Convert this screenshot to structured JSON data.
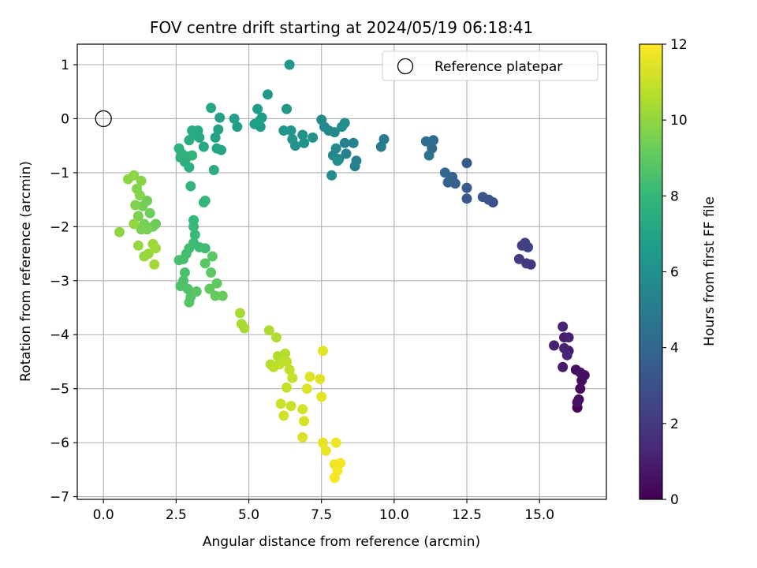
{
  "chart_data": {
    "type": "scatter",
    "title": "FOV centre drift starting at 2024/05/19 06:18:41",
    "xlabel": "Angular distance from reference (arcmin)",
    "ylabel": "Rotation from reference (arcmin)",
    "xlim": [
      -0.9,
      17.3
    ],
    "ylim": [
      -7.05,
      1.38
    ],
    "x_ticks": [
      0.0,
      2.5,
      5.0,
      7.5,
      10.0,
      12.5,
      15.0
    ],
    "x_tick_labels": [
      "0.0",
      "2.5",
      "5.0",
      "7.5",
      "10.0",
      "12.5",
      "15.0"
    ],
    "y_ticks": [
      1,
      0,
      -1,
      -2,
      -3,
      -4,
      -5,
      -6,
      -7
    ],
    "y_tick_labels": [
      "1",
      "0",
      "−1",
      "−2",
      "−3",
      "−4",
      "−5",
      "−6",
      "−7"
    ],
    "grid": true,
    "legend": {
      "position": "top-right",
      "entries": [
        "Reference platepar"
      ]
    },
    "reference_point": {
      "x": 0.0,
      "y": 0.0,
      "label": "Reference platepar"
    },
    "colorbar": {
      "label": "Hours from first FF file",
      "range": [
        0,
        12
      ],
      "ticks": [
        0,
        2,
        4,
        6,
        8,
        10,
        12
      ],
      "tick_labels": [
        "0",
        "2",
        "4",
        "6",
        "8",
        "10",
        "12"
      ],
      "colormap": "viridis"
    },
    "colormap_stops": [
      "#440154",
      "#482878",
      "#3e4989",
      "#31688e",
      "#26828e",
      "#1f9e89",
      "#35b779",
      "#6ece58",
      "#b5de2b",
      "#fde725"
    ],
    "points": [
      {
        "x": 16.3,
        "y": -5.35,
        "h": 0.1
      },
      {
        "x": 16.35,
        "y": -5.2,
        "h": 0.2
      },
      {
        "x": 16.4,
        "y": -5.0,
        "h": 0.3
      },
      {
        "x": 16.45,
        "y": -4.85,
        "h": 0.35
      },
      {
        "x": 16.55,
        "y": -4.75,
        "h": 0.45
      },
      {
        "x": 16.25,
        "y": -4.65,
        "h": 0.5
      },
      {
        "x": 16.4,
        "y": -4.7,
        "h": 0.55
      },
      {
        "x": 16.3,
        "y": -5.25,
        "h": 0.6
      },
      {
        "x": 16.0,
        "y": -4.3,
        "h": 0.8
      },
      {
        "x": 15.8,
        "y": -4.6,
        "h": 0.9
      },
      {
        "x": 15.85,
        "y": -4.05,
        "h": 1.0
      },
      {
        "x": 15.5,
        "y": -4.2,
        "h": 1.05
      },
      {
        "x": 16.0,
        "y": -4.05,
        "h": 1.1
      },
      {
        "x": 15.85,
        "y": -4.25,
        "h": 1.15
      },
      {
        "x": 15.8,
        "y": -3.85,
        "h": 1.2
      },
      {
        "x": 15.95,
        "y": -4.38,
        "h": 1.25
      },
      {
        "x": 14.7,
        "y": -2.7,
        "h": 1.9
      },
      {
        "x": 14.55,
        "y": -2.68,
        "h": 2.0
      },
      {
        "x": 14.3,
        "y": -2.6,
        "h": 2.1
      },
      {
        "x": 14.4,
        "y": -2.35,
        "h": 2.2
      },
      {
        "x": 14.5,
        "y": -2.3,
        "h": 2.3
      },
      {
        "x": 14.6,
        "y": -2.38,
        "h": 2.4
      },
      {
        "x": 13.4,
        "y": -1.55,
        "h": 3.0
      },
      {
        "x": 13.25,
        "y": -1.5,
        "h": 3.1
      },
      {
        "x": 13.05,
        "y": -1.45,
        "h": 3.2
      },
      {
        "x": 12.5,
        "y": -1.48,
        "h": 3.3
      },
      {
        "x": 12.5,
        "y": -1.28,
        "h": 3.4
      },
      {
        "x": 12.5,
        "y": -0.82,
        "h": 3.5
      },
      {
        "x": 12.1,
        "y": -1.2,
        "h": 3.6
      },
      {
        "x": 12.0,
        "y": -1.08,
        "h": 3.7
      },
      {
        "x": 11.85,
        "y": -1.18,
        "h": 3.8
      },
      {
        "x": 11.75,
        "y": -1.0,
        "h": 3.9
      },
      {
        "x": 11.3,
        "y": -0.55,
        "h": 4.1
      },
      {
        "x": 11.35,
        "y": -0.4,
        "h": 4.2
      },
      {
        "x": 11.1,
        "y": -0.42,
        "h": 4.3
      },
      {
        "x": 11.2,
        "y": -0.68,
        "h": 4.4
      },
      {
        "x": 9.65,
        "y": -0.38,
        "h": 4.9
      },
      {
        "x": 9.55,
        "y": -0.52,
        "h": 5.0
      },
      {
        "x": 8.7,
        "y": -0.78,
        "h": 5.2
      },
      {
        "x": 8.65,
        "y": -0.88,
        "h": 5.25
      },
      {
        "x": 8.6,
        "y": -0.45,
        "h": 5.3
      },
      {
        "x": 8.35,
        "y": -0.65,
        "h": 5.35
      },
      {
        "x": 8.3,
        "y": -0.45,
        "h": 5.4
      },
      {
        "x": 8.1,
        "y": -0.75,
        "h": 5.45
      },
      {
        "x": 8.0,
        "y": -0.55,
        "h": 5.5
      },
      {
        "x": 7.9,
        "y": -0.68,
        "h": 5.55
      },
      {
        "x": 7.95,
        "y": -0.25,
        "h": 5.6
      },
      {
        "x": 7.75,
        "y": -0.22,
        "h": 5.65
      },
      {
        "x": 7.6,
        "y": -0.15,
        "h": 5.7
      },
      {
        "x": 7.5,
        "y": -0.02,
        "h": 5.75
      },
      {
        "x": 7.85,
        "y": -1.05,
        "h": 5.8
      },
      {
        "x": 8.2,
        "y": -0.15,
        "h": 5.85
      },
      {
        "x": 8.3,
        "y": -0.08,
        "h": 5.9
      },
      {
        "x": 8.05,
        "y": -0.78,
        "h": 5.95
      },
      {
        "x": 7.2,
        "y": -0.35,
        "h": 6.0
      },
      {
        "x": 6.9,
        "y": -0.45,
        "h": 6.05
      },
      {
        "x": 6.85,
        "y": -0.3,
        "h": 6.1
      },
      {
        "x": 6.6,
        "y": -0.5,
        "h": 6.15
      },
      {
        "x": 6.5,
        "y": -0.38,
        "h": 6.2
      },
      {
        "x": 6.45,
        "y": -0.22,
        "h": 6.25
      },
      {
        "x": 6.2,
        "y": -0.22,
        "h": 6.3
      },
      {
        "x": 6.3,
        "y": 0.18,
        "h": 6.35
      },
      {
        "x": 6.4,
        "y": 1.0,
        "h": 6.4
      },
      {
        "x": 5.65,
        "y": 0.45,
        "h": 6.45
      },
      {
        "x": 5.4,
        "y": -0.15,
        "h": 6.5
      },
      {
        "x": 5.45,
        "y": 0.02,
        "h": 6.55
      },
      {
        "x": 5.3,
        "y": 0.18,
        "h": 6.6
      },
      {
        "x": 5.2,
        "y": -0.1,
        "h": 6.65
      },
      {
        "x": 5.35,
        "y": -0.05,
        "h": 6.7
      },
      {
        "x": 4.6,
        "y": -0.15,
        "h": 6.75
      },
      {
        "x": 4.5,
        "y": 0.0,
        "h": 6.8
      },
      {
        "x": 4.0,
        "y": 0.02,
        "h": 6.85
      },
      {
        "x": 3.95,
        "y": -0.2,
        "h": 6.9
      },
      {
        "x": 3.85,
        "y": -0.35,
        "h": 6.95
      },
      {
        "x": 3.9,
        "y": -0.55,
        "h": 7.0
      },
      {
        "x": 4.05,
        "y": -0.58,
        "h": 7.05
      },
      {
        "x": 3.7,
        "y": 0.2,
        "h": 7.1
      },
      {
        "x": 3.45,
        "y": -0.52,
        "h": 7.15
      },
      {
        "x": 3.3,
        "y": -0.35,
        "h": 7.2
      },
      {
        "x": 3.25,
        "y": -0.22,
        "h": 7.25
      },
      {
        "x": 3.1,
        "y": -0.3,
        "h": 7.3
      },
      {
        "x": 3.05,
        "y": -0.22,
        "h": 7.35
      },
      {
        "x": 2.95,
        "y": -0.4,
        "h": 7.4
      },
      {
        "x": 3.8,
        "y": -0.95,
        "h": 7.45
      },
      {
        "x": 2.9,
        "y": -0.7,
        "h": 7.5
      },
      {
        "x": 2.95,
        "y": -0.9,
        "h": 7.55
      },
      {
        "x": 2.8,
        "y": -0.8,
        "h": 7.6
      },
      {
        "x": 2.65,
        "y": -0.72,
        "h": 7.65
      },
      {
        "x": 2.6,
        "y": -0.55,
        "h": 7.7
      },
      {
        "x": 2.7,
        "y": -0.65,
        "h": 7.75
      },
      {
        "x": 3.05,
        "y": -0.68,
        "h": 7.8
      },
      {
        "x": 3.0,
        "y": -1.25,
        "h": 7.85
      },
      {
        "x": 3.5,
        "y": -1.52,
        "h": 7.9
      },
      {
        "x": 3.45,
        "y": -1.55,
        "h": 7.95
      },
      {
        "x": 3.1,
        "y": -1.88,
        "h": 8.0
      },
      {
        "x": 3.1,
        "y": -2.0,
        "h": 8.05
      },
      {
        "x": 3.15,
        "y": -2.15,
        "h": 8.1
      },
      {
        "x": 3.1,
        "y": -2.3,
        "h": 8.15
      },
      {
        "x": 3.3,
        "y": -2.38,
        "h": 8.2
      },
      {
        "x": 3.5,
        "y": -2.4,
        "h": 8.25
      },
      {
        "x": 2.95,
        "y": -2.4,
        "h": 8.3
      },
      {
        "x": 2.85,
        "y": -2.5,
        "h": 8.35
      },
      {
        "x": 2.75,
        "y": -2.6,
        "h": 8.4
      },
      {
        "x": 2.6,
        "y": -2.62,
        "h": 8.45
      },
      {
        "x": 2.8,
        "y": -2.85,
        "h": 8.5
      },
      {
        "x": 2.75,
        "y": -3.0,
        "h": 8.55
      },
      {
        "x": 2.65,
        "y": -3.1,
        "h": 8.6
      },
      {
        "x": 2.9,
        "y": -3.15,
        "h": 8.65
      },
      {
        "x": 3.0,
        "y": -3.3,
        "h": 8.7
      },
      {
        "x": 2.95,
        "y": -3.4,
        "h": 8.75
      },
      {
        "x": 3.2,
        "y": -3.2,
        "h": 8.8
      },
      {
        "x": 3.5,
        "y": -2.68,
        "h": 8.85
      },
      {
        "x": 3.75,
        "y": -2.55,
        "h": 8.9
      },
      {
        "x": 3.7,
        "y": -2.85,
        "h": 8.95
      },
      {
        "x": 3.9,
        "y": -3.05,
        "h": 9.0
      },
      {
        "x": 3.65,
        "y": -3.15,
        "h": 9.05
      },
      {
        "x": 3.85,
        "y": -3.28,
        "h": 9.1
      },
      {
        "x": 4.1,
        "y": -3.28,
        "h": 9.15
      },
      {
        "x": 1.8,
        "y": -1.95,
        "h": 9.2
      },
      {
        "x": 1.7,
        "y": -2.0,
        "h": 9.25
      },
      {
        "x": 1.6,
        "y": -1.75,
        "h": 9.3
      },
      {
        "x": 1.5,
        "y": -1.52,
        "h": 9.35
      },
      {
        "x": 1.35,
        "y": -1.62,
        "h": 9.4
      },
      {
        "x": 1.4,
        "y": -1.95,
        "h": 9.45
      },
      {
        "x": 1.3,
        "y": -2.05,
        "h": 9.5
      },
      {
        "x": 1.5,
        "y": -2.05,
        "h": 9.55
      },
      {
        "x": 1.2,
        "y": -1.8,
        "h": 9.6
      },
      {
        "x": 1.1,
        "y": -1.6,
        "h": 9.65
      },
      {
        "x": 1.15,
        "y": -1.3,
        "h": 9.7
      },
      {
        "x": 1.25,
        "y": -1.42,
        "h": 9.75
      },
      {
        "x": 1.3,
        "y": -1.15,
        "h": 9.8
      },
      {
        "x": 1.05,
        "y": -1.05,
        "h": 9.85
      },
      {
        "x": 0.85,
        "y": -1.12,
        "h": 9.9
      },
      {
        "x": 0.55,
        "y": -2.1,
        "h": 9.95
      },
      {
        "x": 1.05,
        "y": -1.95,
        "h": 10.0
      },
      {
        "x": 1.2,
        "y": -2.35,
        "h": 10.05
      },
      {
        "x": 1.4,
        "y": -2.55,
        "h": 10.1
      },
      {
        "x": 1.55,
        "y": -2.5,
        "h": 10.15
      },
      {
        "x": 1.7,
        "y": -2.32,
        "h": 10.2
      },
      {
        "x": 1.8,
        "y": -2.4,
        "h": 10.25
      },
      {
        "x": 1.75,
        "y": -2.7,
        "h": 10.3
      },
      {
        "x": 4.7,
        "y": -3.6,
        "h": 10.35
      },
      {
        "x": 4.75,
        "y": -3.8,
        "h": 10.4
      },
      {
        "x": 4.85,
        "y": -3.88,
        "h": 10.45
      },
      {
        "x": 5.7,
        "y": -3.92,
        "h": 10.5
      },
      {
        "x": 5.95,
        "y": -4.05,
        "h": 10.55
      },
      {
        "x": 6.0,
        "y": -4.4,
        "h": 10.6
      },
      {
        "x": 6.25,
        "y": -4.35,
        "h": 10.65
      },
      {
        "x": 5.75,
        "y": -4.55,
        "h": 10.7
      },
      {
        "x": 5.85,
        "y": -4.6,
        "h": 10.75
      },
      {
        "x": 6.05,
        "y": -4.55,
        "h": 10.8
      },
      {
        "x": 6.3,
        "y": -4.5,
        "h": 10.85
      },
      {
        "x": 6.4,
        "y": -4.65,
        "h": 10.9
      },
      {
        "x": 6.5,
        "y": -4.8,
        "h": 10.95
      },
      {
        "x": 6.3,
        "y": -4.98,
        "h": 11.0
      },
      {
        "x": 6.45,
        "y": -5.32,
        "h": 11.05
      },
      {
        "x": 6.1,
        "y": -5.28,
        "h": 11.1
      },
      {
        "x": 6.2,
        "y": -5.5,
        "h": 11.15
      },
      {
        "x": 6.85,
        "y": -5.38,
        "h": 11.2
      },
      {
        "x": 6.9,
        "y": -5.6,
        "h": 11.25
      },
      {
        "x": 6.85,
        "y": -5.9,
        "h": 11.3
      },
      {
        "x": 7.0,
        "y": -5.0,
        "h": 11.35
      },
      {
        "x": 7.1,
        "y": -4.78,
        "h": 11.4
      },
      {
        "x": 7.45,
        "y": -4.82,
        "h": 11.45
      },
      {
        "x": 7.55,
        "y": -4.3,
        "h": 11.5
      },
      {
        "x": 7.5,
        "y": -5.15,
        "h": 11.55
      },
      {
        "x": 7.55,
        "y": -6.0,
        "h": 11.6
      },
      {
        "x": 7.65,
        "y": -6.15,
        "h": 11.65
      },
      {
        "x": 8.0,
        "y": -6.0,
        "h": 11.7
      },
      {
        "x": 7.95,
        "y": -6.4,
        "h": 11.75
      },
      {
        "x": 8.15,
        "y": -6.38,
        "h": 11.8
      },
      {
        "x": 8.05,
        "y": -6.52,
        "h": 11.85
      },
      {
        "x": 7.95,
        "y": -6.65,
        "h": 11.9
      }
    ]
  }
}
